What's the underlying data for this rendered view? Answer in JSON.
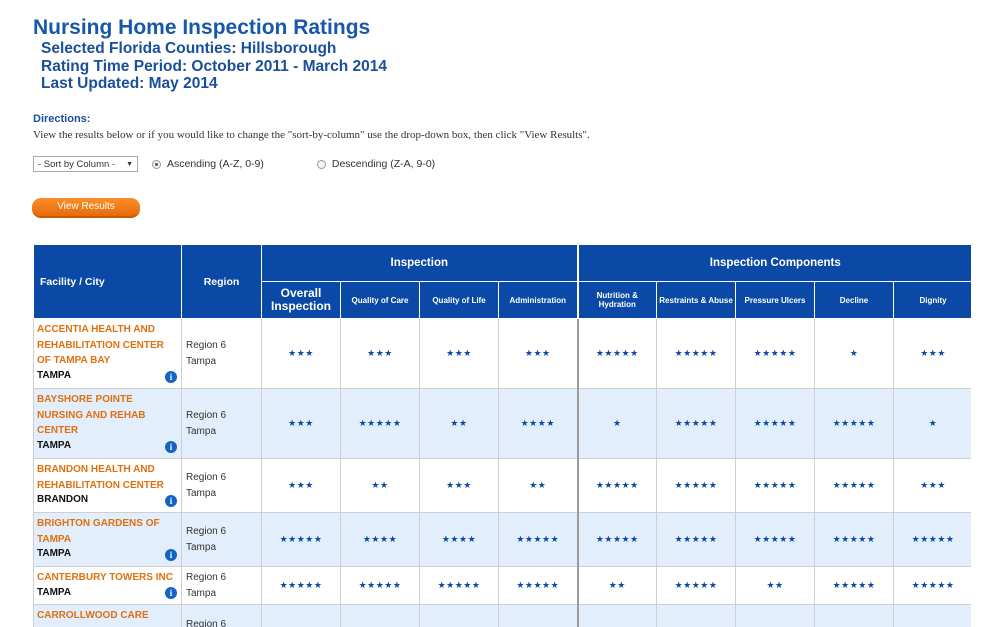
{
  "header": {
    "title": "Nursing Home Inspection Ratings",
    "counties": "Selected Florida Counties: Hillsborough",
    "period": "Rating Time Period: October 2011 - March 2014",
    "updated": "Last Updated: May 2014"
  },
  "directions": {
    "title": "Directions:",
    "text": "View the results below or if you would like to change the \"sort-by-column\" use the drop-down box, then click \"View Results\"."
  },
  "controls": {
    "sort_select": "- Sort by Column -",
    "ascending": "Ascending (A-Z, 0-9)",
    "descending": "Descending (Z-A, 9-0)",
    "selected_order": "ascending",
    "view_button": "View Results"
  },
  "table": {
    "headers": {
      "facility": "Facility / City",
      "region": "Region",
      "inspection": "Inspection",
      "components": "Inspection Components",
      "overall": "Overall Inspection",
      "quality_care": "Quality of Care",
      "quality_life": "Quality of Life",
      "administration": "Administration",
      "nutrition": "Nutrition & Hydration",
      "restraints": "Restraints & Abuse",
      "pressure": "Pressure Ulcers",
      "decline": "Decline",
      "dignity": "Dignity"
    },
    "rows": [
      {
        "name": "ACCENTIA HEALTH AND REHABILITATION CENTER OF TAMPA BAY",
        "city": "TAMPA",
        "region": "Region 6",
        "region_city": "Tampa",
        "ratings": [
          "★★★",
          "★★★",
          "★★★",
          "★★★",
          "★★★★★",
          "★★★★★",
          "★★★★★",
          "★",
          "★★★"
        ]
      },
      {
        "name": "BAYSHORE POINTE NURSING AND REHAB CENTER",
        "city": "TAMPA",
        "region": "Region 6",
        "region_city": "Tampa",
        "ratings": [
          "★★★",
          "★★★★★",
          "★★",
          "★★★★",
          "★",
          "★★★★★",
          "★★★★★",
          "★★★★★",
          "★"
        ]
      },
      {
        "name": "BRANDON HEALTH AND REHABILITATION CENTER",
        "city": "BRANDON",
        "region": "Region 6",
        "region_city": "Tampa",
        "ratings": [
          "★★★",
          "★★",
          "★★★",
          "★★",
          "★★★★★",
          "★★★★★",
          "★★★★★",
          "★★★★★",
          "★★★"
        ]
      },
      {
        "name": "BRIGHTON GARDENS OF TAMPA",
        "city": "TAMPA",
        "region": "Region 6",
        "region_city": "Tampa",
        "ratings": [
          "★★★★★",
          "★★★★",
          "★★★★",
          "★★★★★",
          "★★★★★",
          "★★★★★",
          "★★★★★",
          "★★★★★",
          "★★★★★"
        ]
      },
      {
        "name": "CANTERBURY TOWERS INC",
        "city": "TAMPA",
        "region": "Region 6",
        "region_city": "Tampa",
        "ratings": [
          "★★★★★",
          "★★★★★",
          "★★★★★",
          "★★★★★",
          "★★",
          "★★★★★",
          "★★",
          "★★★★★",
          "★★★★★"
        ]
      },
      {
        "name": "CARROLLWOOD CARE",
        "city": "",
        "region": "Region 6",
        "region_city": "",
        "ratings": [
          "",
          "",
          "",
          "",
          "",
          "",
          "",
          "",
          ""
        ]
      }
    ]
  }
}
